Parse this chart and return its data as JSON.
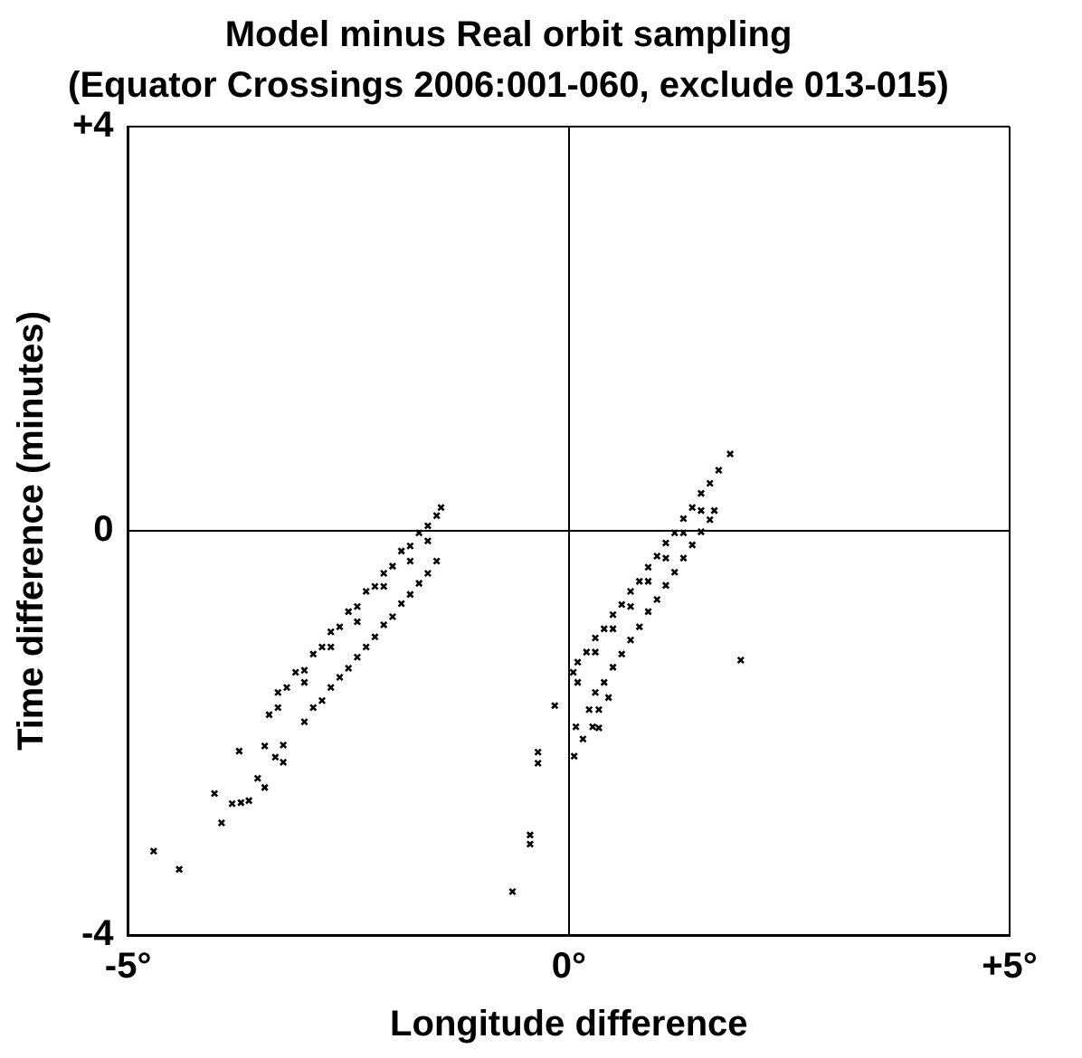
{
  "chart_data": {
    "type": "scatter",
    "title": "Model minus Real orbit sampling",
    "subtitle": "(Equator Crossings 2006:001-060, exclude 013-015)",
    "xlabel": "Longitude difference",
    "ylabel": "Time difference (minutes)",
    "xlim": [
      -5,
      5
    ],
    "xticks": [
      {
        "value": -5,
        "label": "-5°"
      },
      {
        "value": 0,
        "label": "0°"
      },
      {
        "value": 5,
        "label": "+5°"
      }
    ],
    "ylim": [
      -4,
      4
    ],
    "yticks": [
      -4,
      0,
      {
        "value": 4,
        "label": "+4"
      }
    ],
    "grid": true,
    "legend": false,
    "marker": "cross",
    "series": [
      {
        "color": "#000000",
        "x": [
          -4.71,
          -4.42,
          -3.94,
          -4.02,
          -3.74,
          -3.82,
          -3.72,
          -3.63,
          -3.53,
          -3.45,
          -3.45,
          -3.33,
          -3.24,
          -3.24,
          -0.64,
          -0.44,
          -0.44,
          -0.35,
          -0.35,
          -0.16,
          1.95,
          0.06,
          0.08,
          0.16,
          0.27,
          0.34,
          0.23,
          0.34,
          0.45,
          -3.4,
          -3.3,
          -3.2,
          -3.1,
          -3.0,
          -2.9,
          -2.8,
          -2.7,
          -2.6,
          -2.5,
          -2.4,
          -2.3,
          -2.2,
          -2.1,
          -2.0,
          -1.9,
          -1.8,
          -1.7,
          -1.6,
          -1.5,
          -1.45,
          -3.3,
          -3.0,
          -2.7,
          -2.4,
          -2.1,
          -1.8,
          -1.6,
          -3.0,
          -2.9,
          -2.8,
          -2.7,
          -2.6,
          -2.5,
          -2.4,
          -2.3,
          -2.2,
          -2.1,
          -2.0,
          -1.9,
          -1.8,
          -1.7,
          -1.6,
          -1.5,
          0.05,
          0.1,
          0.2,
          0.3,
          0.4,
          0.5,
          0.6,
          0.7,
          0.8,
          0.9,
          1.0,
          1.1,
          1.2,
          1.3,
          1.4,
          1.5,
          1.6,
          1.7,
          1.83,
          0.1,
          0.3,
          0.5,
          0.7,
          0.9,
          1.1,
          1.3,
          1.5,
          0.3,
          0.4,
          0.5,
          0.6,
          0.7,
          0.8,
          0.9,
          1.0,
          1.1,
          1.2,
          1.3,
          1.4,
          1.5,
          1.6,
          1.65
        ],
        "values": [
          -3.17,
          -3.35,
          -2.89,
          -2.6,
          -2.18,
          -2.7,
          -2.69,
          -2.67,
          -2.45,
          -2.54,
          -2.13,
          -2.24,
          -2.12,
          -2.29,
          -3.57,
          -3.01,
          -3.1,
          -2.19,
          -2.3,
          -1.73,
          -1.28,
          -2.23,
          -1.94,
          -2.06,
          -1.94,
          -1.95,
          -1.77,
          -1.77,
          -1.65,
          -1.82,
          -1.6,
          -1.55,
          -1.4,
          -1.38,
          -1.22,
          -1.15,
          -1.0,
          -0.95,
          -0.8,
          -0.75,
          -0.6,
          -0.55,
          -0.42,
          -0.35,
          -0.2,
          -0.15,
          -0.02,
          0.05,
          0.15,
          0.23,
          -1.75,
          -1.5,
          -1.15,
          -0.9,
          -0.55,
          -0.3,
          -0.1,
          -1.89,
          -1.75,
          -1.68,
          -1.55,
          -1.45,
          -1.36,
          -1.25,
          -1.15,
          -1.05,
          -0.93,
          -0.85,
          -0.72,
          -0.63,
          -0.52,
          -0.42,
          -0.3,
          -1.4,
          -1.3,
          -1.2,
          -1.06,
          -0.97,
          -0.83,
          -0.73,
          -0.6,
          -0.5,
          -0.36,
          -0.25,
          -0.12,
          -0.02,
          0.12,
          0.23,
          0.37,
          0.47,
          0.6,
          0.76,
          -1.5,
          -1.2,
          -0.97,
          -0.75,
          -0.5,
          -0.27,
          -0.02,
          0.2,
          -1.6,
          -1.5,
          -1.35,
          -1.22,
          -1.08,
          -0.95,
          -0.8,
          -0.68,
          -0.54,
          -0.41,
          -0.27,
          -0.14,
          -0.01,
          0.11,
          0.2
        ]
      }
    ]
  }
}
